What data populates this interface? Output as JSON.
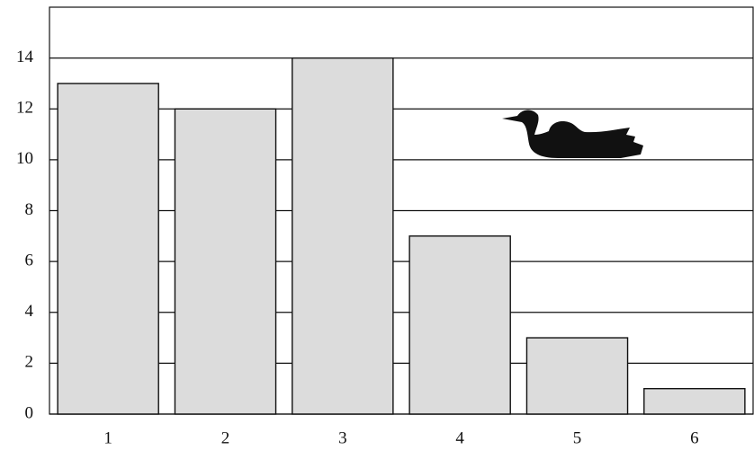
{
  "chart_data": {
    "type": "bar",
    "categories": [
      "1",
      "2",
      "3",
      "4",
      "5",
      "6"
    ],
    "values": [
      13,
      12,
      14,
      7,
      3,
      1
    ],
    "color": "#dcdcdc",
    "ylim": [
      0,
      16
    ],
    "yticks": [
      0,
      2,
      4,
      6,
      8,
      10,
      12,
      14
    ],
    "grid": true
  }
}
